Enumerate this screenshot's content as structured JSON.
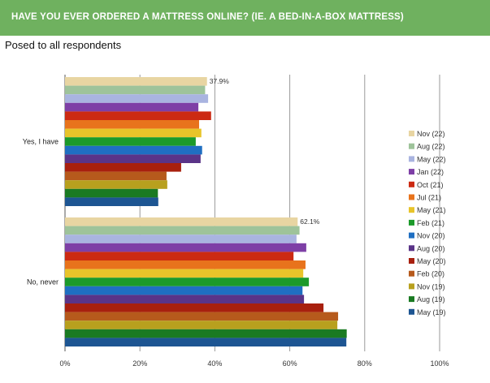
{
  "header": {
    "title": "HAVE YOU EVER ORDERED A MATTRESS ONLINE? (IE. A BED-IN-A-BOX MATTRESS)",
    "subtitle": "Posed to all respondents"
  },
  "chart_data": {
    "type": "bar",
    "orientation": "horizontal",
    "categories": [
      "Yes, I have",
      "No, never"
    ],
    "x_ticks": [
      "0%",
      "20%",
      "40%",
      "60%",
      "80%",
      "100%"
    ],
    "xlim": [
      0,
      100
    ],
    "grid": true,
    "legend_position": "right",
    "series": [
      {
        "name": "Nov (22)",
        "color": "#e8d5a2",
        "values": [
          37.9,
          62.1
        ]
      },
      {
        "name": "Aug (22)",
        "color": "#9ec39a",
        "values": [
          37.4,
          62.6
        ]
      },
      {
        "name": "May (22)",
        "color": "#a9b4e0",
        "values": [
          38.2,
          61.8
        ]
      },
      {
        "name": "Jan (22)",
        "color": "#7e3fa6",
        "values": [
          35.6,
          64.4
        ]
      },
      {
        "name": "Oct (21)",
        "color": "#cc2a12",
        "values": [
          39.0,
          61.0
        ]
      },
      {
        "name": "Jul (21)",
        "color": "#e8731c",
        "values": [
          35.8,
          64.2
        ]
      },
      {
        "name": "May (21)",
        "color": "#e8c42a",
        "values": [
          36.4,
          63.6
        ]
      },
      {
        "name": "Feb (21)",
        "color": "#1c9a2a",
        "values": [
          34.9,
          65.1
        ]
      },
      {
        "name": "Nov (20)",
        "color": "#1f6fc2",
        "values": [
          36.6,
          63.4
        ]
      },
      {
        "name": "Aug (20)",
        "color": "#5a3488",
        "values": [
          36.2,
          63.8
        ]
      },
      {
        "name": "May (20)",
        "color": "#a8200e",
        "values": [
          31.0,
          69.0
        ]
      },
      {
        "name": "Feb (20)",
        "color": "#b65a1c",
        "values": [
          27.1,
          72.9
        ]
      },
      {
        "name": "Nov (19)",
        "color": "#b8a01e",
        "values": [
          27.3,
          72.7
        ]
      },
      {
        "name": "Aug (19)",
        "color": "#1a7a22",
        "values": [
          24.8,
          75.2
        ]
      },
      {
        "name": "May (19)",
        "color": "#1d5592",
        "values": [
          24.9,
          75.1
        ]
      }
    ],
    "data_labels": [
      {
        "category": "Yes, I have",
        "series": "Nov (22)",
        "text": "37.9%"
      },
      {
        "category": "No, never",
        "series": "Nov (22)",
        "text": "62.1%"
      }
    ]
  }
}
